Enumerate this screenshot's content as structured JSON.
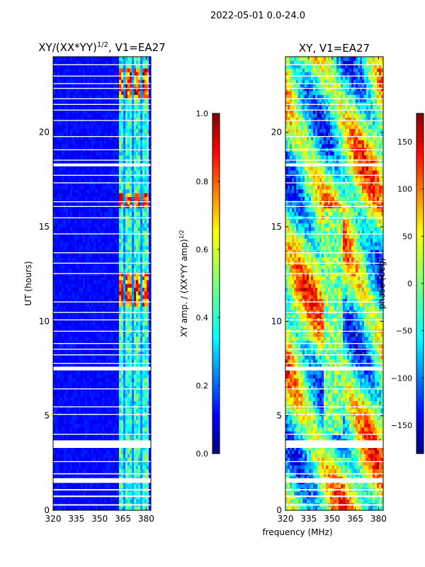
{
  "figure_title": "2022-05-01 0.0-24.0",
  "xlabel_shared": "frequency (MHz)",
  "colors": {
    "missing_rows": "#ffffff",
    "frame": "#000000"
  },
  "chart_data": [
    {
      "type": "heatmap",
      "title_main": "XY/(XX*YY)",
      "title_sup": "1/2",
      "title_tail": ", V1=EA27",
      "ylabel": "UT (hours)",
      "xlim": [
        320,
        383
      ],
      "ylim": [
        0,
        24
      ],
      "xticks": [
        320,
        335,
        350,
        365,
        380
      ],
      "yticks": [
        0,
        5,
        10,
        15,
        20
      ],
      "colormap": "jet",
      "colorbar": {
        "label_main": "XY amp. / (XX*YY amp)",
        "label_sup": "1/2",
        "vmin": 0.0,
        "vmax": 1.0,
        "ticks": [
          "0.0",
          "0.2",
          "0.4",
          "0.6",
          "0.8",
          "1.0"
        ],
        "tick_values": [
          0.0,
          0.2,
          0.4,
          0.6,
          0.8,
          1.0
        ]
      },
      "bright_band_mhz": [
        362,
        381
      ],
      "bright_subchannels_mhz": [
        [
          362.5,
          365.5
        ],
        [
          367,
          370.5
        ],
        [
          372,
          375.5
        ],
        [
          377.5,
          381
        ]
      ],
      "high_amplitude_hours": [
        [
          10.8,
          12.6
        ],
        [
          16.0,
          16.8
        ],
        [
          21.8,
          23.4
        ]
      ]
    },
    {
      "type": "heatmap",
      "title_main": "XY, V1=EA27",
      "ylabel": "",
      "xlim": [
        320,
        383
      ],
      "ylim": [
        0,
        24
      ],
      "xticks": [
        320,
        335,
        350,
        365,
        380
      ],
      "yticks": [
        0,
        5,
        10,
        15,
        20
      ],
      "colormap": "jet",
      "colorbar": {
        "label_main": "phase (deg)",
        "vmin": -180,
        "vmax": 180,
        "ticks": [
          "−150",
          "−100",
          "−50",
          "0",
          "50",
          "100",
          "150"
        ],
        "tick_values": [
          -150,
          -100,
          -50,
          0,
          50,
          100,
          150
        ]
      }
    }
  ],
  "blank_hour_ranges": [
    [
      0.25,
      0.32
    ],
    [
      0.7,
      0.78
    ],
    [
      1.05,
      1.12
    ],
    [
      1.45,
      1.7
    ],
    [
      1.9,
      1.96
    ],
    [
      2.55,
      2.6
    ],
    [
      3.3,
      3.7
    ],
    [
      4.0,
      4.05
    ],
    [
      5.05,
      5.1
    ],
    [
      5.45,
      5.5
    ],
    [
      6.4,
      6.45
    ],
    [
      7.4,
      7.6
    ],
    [
      7.75,
      7.8
    ],
    [
      8.2,
      8.25
    ],
    [
      8.5,
      8.55
    ],
    [
      8.8,
      8.85
    ],
    [
      9.45,
      9.5
    ],
    [
      10.05,
      10.1
    ],
    [
      10.45,
      10.5
    ],
    [
      11.0,
      11.05
    ],
    [
      12.5,
      12.55
    ],
    [
      13.05,
      13.1
    ],
    [
      13.6,
      13.65
    ],
    [
      14.6,
      14.65
    ],
    [
      15.45,
      15.5
    ],
    [
      16.05,
      16.1
    ],
    [
      16.3,
      16.35
    ],
    [
      17.3,
      17.35
    ],
    [
      17.7,
      17.75
    ],
    [
      18.2,
      18.35
    ],
    [
      18.5,
      18.55
    ],
    [
      19.05,
      19.1
    ],
    [
      19.75,
      19.8
    ],
    [
      20.6,
      20.65
    ],
    [
      21.15,
      21.2
    ],
    [
      21.45,
      21.5
    ],
    [
      21.75,
      21.8
    ],
    [
      22.3,
      22.35
    ],
    [
      22.55,
      22.6
    ],
    [
      22.95,
      23.0
    ],
    [
      23.55,
      23.6
    ]
  ]
}
